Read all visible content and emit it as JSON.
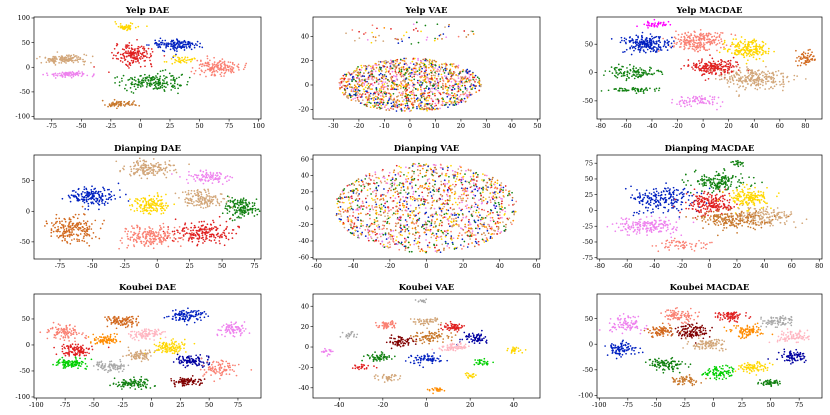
{
  "figure": {
    "rows": 3,
    "cols": 3
  },
  "chart_data": [
    {
      "type": "scatter",
      "title": "Yelp DAE",
      "xlim": [
        -90,
        102
      ],
      "ylim": [
        -105,
        102
      ],
      "xticks": [
        -75,
        -50,
        -25,
        0,
        25,
        50,
        75,
        100
      ],
      "yticks": [
        -100,
        -50,
        0,
        50,
        100
      ],
      "clusters": [
        {
          "color": "#ffd700",
          "cx": -12,
          "cy": 82,
          "rx": 9,
          "ry": 7,
          "n": 50
        },
        {
          "color": "#d2a679",
          "cx": -65,
          "cy": 16,
          "rx": 20,
          "ry": 9,
          "n": 140
        },
        {
          "color": "#e02020",
          "cx": -5,
          "cy": 25,
          "rx": 16,
          "ry": 20,
          "n": 170
        },
        {
          "color": "#0020c0",
          "cx": 30,
          "cy": 45,
          "rx": 20,
          "ry": 12,
          "n": 150
        },
        {
          "color": "#ee82ee",
          "cx": -60,
          "cy": -14,
          "rx": 18,
          "ry": 6,
          "n": 80
        },
        {
          "color": "#fa8072",
          "cx": 65,
          "cy": 0,
          "rx": 18,
          "ry": 16,
          "n": 160
        },
        {
          "color": "#108010",
          "cx": 10,
          "cy": -30,
          "rx": 28,
          "ry": 17,
          "n": 190
        },
        {
          "color": "#c8782c",
          "cx": -17,
          "cy": -75,
          "rx": 15,
          "ry": 6,
          "n": 70
        },
        {
          "color": "#ffd700",
          "cx": 35,
          "cy": 15,
          "rx": 10,
          "ry": 7,
          "n": 40
        }
      ]
    },
    {
      "type": "scatter",
      "title": "Yelp VAE",
      "xlim": [
        -38,
        51
      ],
      "ylim": [
        -28,
        56
      ],
      "xticks": [
        -30,
        -20,
        -10,
        0,
        10,
        20,
        30,
        40,
        50
      ],
      "yticks": [
        -20,
        0,
        20,
        40
      ],
      "clusters": [
        {
          "color": "mix",
          "cx": 0,
          "cy": 0,
          "rx": 28,
          "ry": 22,
          "n": 1400
        },
        {
          "color": "mix",
          "cx": 0,
          "cy": 42,
          "rx": 26,
          "ry": 10,
          "n": 60
        }
      ]
    },
    {
      "type": "scatter",
      "title": "Yelp MACDAE",
      "xlim": [
        -83,
        93
      ],
      "ylim": [
        -82,
        98
      ],
      "xticks": [
        -80,
        -60,
        -40,
        -20,
        0,
        20,
        40,
        60,
        80
      ],
      "yticks": [
        -50,
        0,
        50
      ],
      "clusters": [
        {
          "color": "#ff00ff",
          "cx": -38,
          "cy": 85,
          "rx": 10,
          "ry": 6,
          "n": 40
        },
        {
          "color": "#0020c0",
          "cx": -45,
          "cy": 50,
          "rx": 18,
          "ry": 16,
          "n": 220
        },
        {
          "color": "#fa8072",
          "cx": -5,
          "cy": 55,
          "rx": 20,
          "ry": 18,
          "n": 220
        },
        {
          "color": "#ffd700",
          "cx": 35,
          "cy": 40,
          "rx": 17,
          "ry": 16,
          "n": 200
        },
        {
          "color": "#e02020",
          "cx": 8,
          "cy": 10,
          "rx": 16,
          "ry": 14,
          "n": 200
        },
        {
          "color": "#d2a679",
          "cx": 40,
          "cy": -10,
          "rx": 28,
          "ry": 18,
          "n": 250
        },
        {
          "color": "#108010",
          "cx": -55,
          "cy": 0,
          "rx": 20,
          "ry": 12,
          "n": 120
        },
        {
          "color": "#ee82ee",
          "cx": -5,
          "cy": -50,
          "rx": 18,
          "ry": 8,
          "n": 80
        },
        {
          "color": "#d2691e",
          "cx": 80,
          "cy": 25,
          "rx": 7,
          "ry": 14,
          "n": 60
        },
        {
          "color": "#108010",
          "cx": -55,
          "cy": -30,
          "rx": 20,
          "ry": 5,
          "n": 60
        }
      ]
    },
    {
      "type": "scatter",
      "title": "Dianping DAE",
      "xlim": [
        -95,
        80
      ],
      "ylim": [
        -78,
        92
      ],
      "xticks": [
        -75,
        -50,
        -25,
        0,
        25,
        50,
        75
      ],
      "yticks": [
        -50,
        0,
        50
      ],
      "clusters": [
        {
          "color": "#d2a679",
          "cx": -5,
          "cy": 70,
          "rx": 20,
          "ry": 12,
          "n": 160
        },
        {
          "color": "#ee82ee",
          "cx": 40,
          "cy": 55,
          "rx": 18,
          "ry": 10,
          "n": 90
        },
        {
          "color": "#0020c0",
          "cx": -50,
          "cy": 25,
          "rx": 18,
          "ry": 14,
          "n": 170
        },
        {
          "color": "#d2691e",
          "cx": -65,
          "cy": -30,
          "rx": 18,
          "ry": 24,
          "n": 200
        },
        {
          "color": "#ffd700",
          "cx": -5,
          "cy": 10,
          "rx": 14,
          "ry": 15,
          "n": 150
        },
        {
          "color": "#e02020",
          "cx": 35,
          "cy": -35,
          "rx": 22,
          "ry": 16,
          "n": 200
        },
        {
          "color": "#fa8072",
          "cx": -5,
          "cy": -40,
          "rx": 22,
          "ry": 18,
          "n": 200
        },
        {
          "color": "#108010",
          "cx": 65,
          "cy": 5,
          "rx": 12,
          "ry": 16,
          "n": 150
        },
        {
          "color": "#d2a679",
          "cx": 35,
          "cy": 20,
          "rx": 15,
          "ry": 14,
          "n": 140
        }
      ]
    },
    {
      "type": "scatter",
      "title": "Dianping VAE",
      "xlim": [
        -62,
        62
      ],
      "ylim": [
        -62,
        65
      ],
      "xticks": [
        -60,
        -40,
        -20,
        0,
        20,
        40,
        60
      ],
      "yticks": [
        -60,
        -40,
        -20,
        0,
        20,
        40,
        60
      ],
      "clusters": [
        {
          "color": "mix",
          "cx": 0,
          "cy": 0,
          "rx": 50,
          "ry": 55,
          "n": 1500
        }
      ]
    },
    {
      "type": "scatter",
      "title": "Dianping MACDAE",
      "xlim": [
        -82,
        82
      ],
      "ylim": [
        -77,
        88
      ],
      "xticks": [
        -80,
        -60,
        -40,
        -20,
        0,
        20,
        40,
        60,
        80
      ],
      "yticks": [
        -75,
        -50,
        -25,
        0,
        25,
        50,
        75
      ],
      "clusters": [
        {
          "color": "#108010",
          "cx": 5,
          "cy": 45,
          "rx": 20,
          "ry": 16,
          "n": 170
        },
        {
          "color": "#0020c0",
          "cx": -35,
          "cy": 20,
          "rx": 22,
          "ry": 20,
          "n": 200
        },
        {
          "color": "#e02020",
          "cx": 0,
          "cy": 10,
          "rx": 16,
          "ry": 18,
          "n": 200
        },
        {
          "color": "#ffd700",
          "cx": 28,
          "cy": 20,
          "rx": 16,
          "ry": 16,
          "n": 170
        },
        {
          "color": "#d2a679",
          "cx": 40,
          "cy": -10,
          "rx": 22,
          "ry": 14,
          "n": 160
        },
        {
          "color": "#ee82ee",
          "cx": -45,
          "cy": -25,
          "rx": 22,
          "ry": 14,
          "n": 170
        },
        {
          "color": "#c8782c",
          "cx": 15,
          "cy": -15,
          "rx": 25,
          "ry": 15,
          "n": 200
        },
        {
          "color": "#fa8072",
          "cx": -20,
          "cy": -55,
          "rx": 22,
          "ry": 8,
          "n": 60
        },
        {
          "color": "#108010",
          "cx": 20,
          "cy": 75,
          "rx": 5,
          "ry": 4,
          "n": 20
        }
      ]
    },
    {
      "type": "scatter",
      "title": "Koubei DAE",
      "xlim": [
        -102,
        95
      ],
      "ylim": [
        -102,
        98
      ],
      "xticks": [
        -100,
        -75,
        -50,
        -25,
        0,
        25,
        50,
        75
      ],
      "yticks": [
        -100,
        -50,
        0,
        50
      ],
      "clusters": [
        {
          "color": "#d2691e",
          "cx": -25,
          "cy": 45,
          "rx": 14,
          "ry": 12,
          "n": 100
        },
        {
          "color": "#0020c0",
          "cx": 30,
          "cy": 55,
          "rx": 15,
          "ry": 12,
          "n": 110
        },
        {
          "color": "#fa8072",
          "cx": -75,
          "cy": 25,
          "rx": 14,
          "ry": 14,
          "n": 100
        },
        {
          "color": "#ffb6c1",
          "cx": -5,
          "cy": 20,
          "rx": 14,
          "ry": 10,
          "n": 100
        },
        {
          "color": "#ee82ee",
          "cx": 70,
          "cy": 30,
          "rx": 12,
          "ry": 12,
          "n": 80
        },
        {
          "color": "#e02020",
          "cx": -65,
          "cy": -10,
          "rx": 14,
          "ry": 12,
          "n": 110
        },
        {
          "color": "#ffd700",
          "cx": 15,
          "cy": -5,
          "rx": 14,
          "ry": 14,
          "n": 110
        },
        {
          "color": "#00d000",
          "cx": -70,
          "cy": -35,
          "rx": 14,
          "ry": 10,
          "n": 100
        },
        {
          "color": "#a9a9a9",
          "cx": -35,
          "cy": -40,
          "rx": 14,
          "ry": 10,
          "n": 90
        },
        {
          "color": "#0000a0",
          "cx": 35,
          "cy": -30,
          "rx": 14,
          "ry": 12,
          "n": 100
        },
        {
          "color": "#108010",
          "cx": -15,
          "cy": -75,
          "rx": 16,
          "ry": 10,
          "n": 100
        },
        {
          "color": "#800000",
          "cx": 30,
          "cy": -70,
          "rx": 14,
          "ry": 8,
          "n": 90
        },
        {
          "color": "#fa8072",
          "cx": 60,
          "cy": -45,
          "rx": 14,
          "ry": 20,
          "n": 90
        },
        {
          "color": "#d2a679",
          "cx": -10,
          "cy": -20,
          "rx": 12,
          "ry": 10,
          "n": 80
        },
        {
          "color": "#ff8c00",
          "cx": -40,
          "cy": 10,
          "rx": 12,
          "ry": 10,
          "n": 80
        }
      ]
    },
    {
      "type": "scatter",
      "title": "Koubei VAE",
      "xlim": [
        -52,
        52
      ],
      "ylim": [
        -50,
        52
      ],
      "xticks": [
        -40,
        -20,
        0,
        20,
        40
      ],
      "yticks": [
        -40,
        -20,
        0,
        20,
        40
      ],
      "clusters": [
        {
          "color": "#a9a9a9",
          "cx": -2,
          "cy": 45,
          "rx": 3,
          "ry": 2,
          "n": 15
        },
        {
          "color": "#e02020",
          "cx": 12,
          "cy": 20,
          "rx": 5,
          "ry": 4,
          "n": 60
        },
        {
          "color": "#d2a679",
          "cx": 0,
          "cy": 25,
          "rx": 6,
          "ry": 4,
          "n": 50
        },
        {
          "color": "#fa8072",
          "cx": -18,
          "cy": 22,
          "rx": 5,
          "ry": 4,
          "n": 50
        },
        {
          "color": "#800000",
          "cx": -12,
          "cy": 5,
          "rx": 6,
          "ry": 5,
          "n": 70
        },
        {
          "color": "#c8782c",
          "cx": 2,
          "cy": 10,
          "rx": 8,
          "ry": 6,
          "n": 90
        },
        {
          "color": "#0000a0",
          "cx": 22,
          "cy": 8,
          "rx": 6,
          "ry": 5,
          "n": 70
        },
        {
          "color": "#ffb6c1",
          "cx": 12,
          "cy": 0,
          "rx": 7,
          "ry": 5,
          "n": 70
        },
        {
          "color": "#108010",
          "cx": -22,
          "cy": -10,
          "rx": 6,
          "ry": 5,
          "n": 60
        },
        {
          "color": "#0020c0",
          "cx": 0,
          "cy": -12,
          "rx": 8,
          "ry": 5,
          "n": 70
        },
        {
          "color": "#ffd700",
          "cx": 40,
          "cy": -3,
          "rx": 4,
          "ry": 3,
          "n": 30
        },
        {
          "color": "#00d000",
          "cx": 25,
          "cy": -15,
          "rx": 4,
          "ry": 3,
          "n": 30
        },
        {
          "color": "#d2a679",
          "cx": -18,
          "cy": -30,
          "rx": 5,
          "ry": 3,
          "n": 40
        },
        {
          "color": "#ff8c00",
          "cx": 5,
          "cy": -42,
          "rx": 4,
          "ry": 2,
          "n": 25
        },
        {
          "color": "#ee82ee",
          "cx": -45,
          "cy": -5,
          "rx": 3,
          "ry": 3,
          "n": 20
        },
        {
          "color": "#a9a9a9",
          "cx": -35,
          "cy": 12,
          "rx": 4,
          "ry": 3,
          "n": 25
        },
        {
          "color": "#e02020",
          "cx": -30,
          "cy": -20,
          "rx": 4,
          "ry": 3,
          "n": 25
        },
        {
          "color": "#ffd700",
          "cx": 20,
          "cy": -28,
          "rx": 3,
          "ry": 2,
          "n": 20
        }
      ]
    },
    {
      "type": "scatter",
      "title": "Koubei MACDAE",
      "xlim": [
        -102,
        95
      ],
      "ylim": [
        -105,
        98
      ],
      "xticks": [
        -100,
        -75,
        -50,
        -25,
        0,
        25,
        50,
        75
      ],
      "yticks": [
        -100,
        -50,
        0,
        50
      ],
      "clusters": [
        {
          "color": "#ee82ee",
          "cx": -75,
          "cy": 40,
          "rx": 15,
          "ry": 14,
          "n": 90
        },
        {
          "color": "#fa8072",
          "cx": -30,
          "cy": 55,
          "rx": 14,
          "ry": 12,
          "n": 90
        },
        {
          "color": "#e02020",
          "cx": 15,
          "cy": 55,
          "rx": 12,
          "ry": 10,
          "n": 80
        },
        {
          "color": "#800000",
          "cx": -20,
          "cy": 25,
          "rx": 16,
          "ry": 14,
          "n": 120
        },
        {
          "color": "#d2691e",
          "cx": -45,
          "cy": 25,
          "rx": 12,
          "ry": 10,
          "n": 80
        },
        {
          "color": "#a9a9a9",
          "cx": 55,
          "cy": 45,
          "rx": 14,
          "ry": 10,
          "n": 80
        },
        {
          "color": "#ff8c00",
          "cx": 30,
          "cy": 25,
          "rx": 14,
          "ry": 12,
          "n": 90
        },
        {
          "color": "#0020c0",
          "cx": -80,
          "cy": -10,
          "rx": 14,
          "ry": 14,
          "n": 90
        },
        {
          "color": "#d2a679",
          "cx": -5,
          "cy": 0,
          "rx": 16,
          "ry": 12,
          "n": 100
        },
        {
          "color": "#ffb6c1",
          "cx": 70,
          "cy": 15,
          "rx": 14,
          "ry": 12,
          "n": 80
        },
        {
          "color": "#108010",
          "cx": -40,
          "cy": -40,
          "rx": 16,
          "ry": 12,
          "n": 100
        },
        {
          "color": "#00d000",
          "cx": 5,
          "cy": -55,
          "rx": 14,
          "ry": 12,
          "n": 90
        },
        {
          "color": "#ffd700",
          "cx": 35,
          "cy": -45,
          "rx": 12,
          "ry": 10,
          "n": 80
        },
        {
          "color": "#0000a0",
          "cx": 70,
          "cy": -25,
          "rx": 14,
          "ry": 14,
          "n": 80
        },
        {
          "color": "#108010",
          "cx": 50,
          "cy": -75,
          "rx": 10,
          "ry": 6,
          "n": 50
        },
        {
          "color": "#c8782c",
          "cx": -25,
          "cy": -70,
          "rx": 12,
          "ry": 8,
          "n": 60
        }
      ]
    }
  ],
  "mix_palette": [
    "#0020c0",
    "#e02020",
    "#ffd700",
    "#108010",
    "#ee82ee",
    "#d2a679",
    "#fa8072",
    "#c8782c",
    "#ff8c00"
  ]
}
